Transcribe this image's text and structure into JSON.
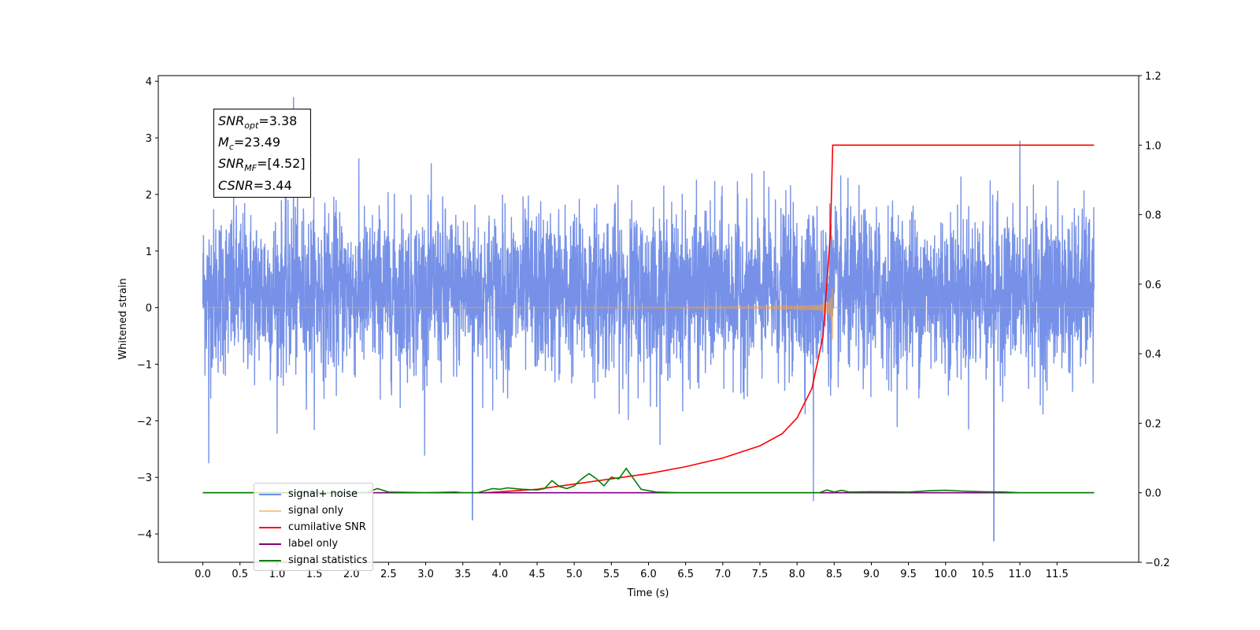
{
  "chart_data": {
    "type": "line",
    "xlabel": "Time (s)",
    "ylabel": "Whitened strain",
    "xlim": [
      -0.6,
      12.6
    ],
    "ylim": [
      -4.5,
      4.1
    ],
    "y2lim": [
      -0.2,
      1.2
    ],
    "x_ticks": [
      "0.0",
      "0.5",
      "1.0",
      "1.5",
      "2.0",
      "2.5",
      "3.0",
      "3.5",
      "4.0",
      "4.5",
      "5.0",
      "5.5",
      "6.0",
      "6.5",
      "7.0",
      "7.5",
      "8.0",
      "8.5",
      "9.0",
      "9.5",
      "10.0",
      "10.5",
      "11.0",
      "11.5"
    ],
    "y_ticks": [
      "4",
      "3",
      "2",
      "1",
      "0",
      "−1",
      "−2",
      "−3",
      "−4"
    ],
    "y2_ticks": [
      "1.2",
      "1.0",
      "0.8",
      "0.6",
      "0.4",
      "0.2",
      "0.0",
      "−0.2"
    ],
    "stats": [
      {
        "name": "SNR",
        "sub": "opt",
        "value": "=3.38"
      },
      {
        "name": "M",
        "sub": "c",
        "value": "=23.49"
      },
      {
        "name": "SNR",
        "sub": "MF",
        "value": "=[4.52]"
      },
      {
        "name": "CSNR",
        "sub": "",
        "value": "=3.44"
      }
    ],
    "series": [
      {
        "name": "signal+ noise",
        "color": "#6f8be6",
        "axis": "left",
        "kind": "noise",
        "x_range": [
          0.0,
          12.0
        ],
        "typical_range": [
          -1.5,
          2.0
        ],
        "notable_spikes": [
          [
            1.22,
            3.72
          ],
          [
            3.63,
            -3.75
          ],
          [
            10.65,
            -4.12
          ],
          [
            8.22,
            -3.42
          ],
          [
            11.0,
            2.95
          ],
          [
            0.08,
            -2.75
          ]
        ]
      },
      {
        "name": "signal only",
        "color": "#f5a142",
        "axis": "left",
        "kind": "chirp",
        "x_range": [
          0.0,
          8.48
        ],
        "merger_time": 8.48,
        "peak_amplitude": 0.65
      },
      {
        "name": "cumilative SNR",
        "color": "#ff0000",
        "axis": "right",
        "points": [
          [
            3.8,
            0.0
          ],
          [
            4.5,
            0.01
          ],
          [
            5.0,
            0.025
          ],
          [
            5.5,
            0.04
          ],
          [
            6.0,
            0.055
          ],
          [
            6.5,
            0.075
          ],
          [
            7.0,
            0.1
          ],
          [
            7.5,
            0.135
          ],
          [
            7.8,
            0.17
          ],
          [
            8.0,
            0.215
          ],
          [
            8.2,
            0.3
          ],
          [
            8.35,
            0.45
          ],
          [
            8.45,
            0.75
          ],
          [
            8.48,
            1.0
          ],
          [
            12.0,
            1.0
          ]
        ]
      },
      {
        "name": "label only",
        "color": "#800080",
        "axis": "right",
        "points": [
          [
            0.0,
            0.0
          ],
          [
            12.0,
            0.0
          ]
        ]
      },
      {
        "name": "signal statistics",
        "color": "#008000",
        "axis": "right",
        "points": [
          [
            0.0,
            0.0
          ],
          [
            2.2,
            0.0
          ],
          [
            2.35,
            0.012
          ],
          [
            2.5,
            0.002
          ],
          [
            3.0,
            0.0
          ],
          [
            3.4,
            0.002
          ],
          [
            3.5,
            0.0
          ],
          [
            3.7,
            0.0
          ],
          [
            3.9,
            0.012
          ],
          [
            4.0,
            0.01
          ],
          [
            4.1,
            0.014
          ],
          [
            4.3,
            0.01
          ],
          [
            4.5,
            0.008
          ],
          [
            4.6,
            0.012
          ],
          [
            4.7,
            0.035
          ],
          [
            4.8,
            0.018
          ],
          [
            4.9,
            0.012
          ],
          [
            5.0,
            0.02
          ],
          [
            5.1,
            0.04
          ],
          [
            5.2,
            0.055
          ],
          [
            5.3,
            0.04
          ],
          [
            5.4,
            0.02
          ],
          [
            5.5,
            0.045
          ],
          [
            5.6,
            0.04
          ],
          [
            5.7,
            0.07
          ],
          [
            5.8,
            0.04
          ],
          [
            5.9,
            0.01
          ],
          [
            6.1,
            0.002
          ],
          [
            6.4,
            0.0
          ],
          [
            8.3,
            0.0
          ],
          [
            8.4,
            0.008
          ],
          [
            8.5,
            0.002
          ],
          [
            8.6,
            0.007
          ],
          [
            8.7,
            0.002
          ],
          [
            9.0,
            0.003
          ],
          [
            9.5,
            0.002
          ],
          [
            9.8,
            0.006
          ],
          [
            10.0,
            0.007
          ],
          [
            10.2,
            0.005
          ],
          [
            10.5,
            0.003
          ],
          [
            10.8,
            0.002
          ],
          [
            11.0,
            0.0
          ],
          [
            12.0,
            0.0
          ]
        ]
      }
    ],
    "legend_position": "lower-left",
    "legend_labels": [
      "signal+ noise",
      "signal only",
      "cumilative SNR",
      "label only",
      "signal statistics"
    ]
  }
}
